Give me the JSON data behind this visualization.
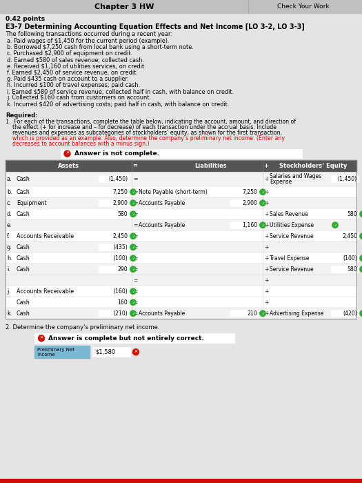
{
  "title": "Chapter 3 HW",
  "check_your_work": "Check Your Work",
  "points": "0.42 points",
  "problem_title": "E3-7 Determining Accounting Equation Effects and Net Income [LO 3-2, LO 3-3]",
  "intro": "The following transactions occurred during a recent year:",
  "transactions": [
    "a. Paid wages of $1,450 for the current period (example).",
    "b. Borrowed $7,250 cash from local bank using a short-term note.",
    "c. Purchased $2,900 of equipment on credit.",
    "d. Earned $580 of sales revenue; collected cash.",
    "e. Received $1,160 of utilities services, on credit.",
    "f. Earned $2,450 of service revenue, on credit.",
    "g. Paid $435 cash on account to a supplier.",
    "h. Incurred $100 of travel expenses; paid cash.",
    "i. Earned $580 of service revenue; collected half in cash, with balance on credit.",
    "j. Collected $160 cash from customers on account.",
    "k. Incurred $420 of advertising costs; paid half in cash, with balance on credit."
  ],
  "answer_incomplete_label": "Answer is not complete.",
  "answer_complete_label": "Answer is complete but not entirely correct.",
  "table_header_assets": "Assets",
  "table_header_eq": "=",
  "table_header_liab": "Liabilities",
  "table_header_plus": "+",
  "table_header_equity": "Stockholders’ Equity",
  "render_rows": [
    [
      "a",
      "Cash",
      "(1,450)",
      false,
      "",
      "",
      false,
      "Salaries and Wages\nExpense",
      "(1,450)",
      false,
      "#f2f2f2"
    ],
    [
      "b",
      "Cash",
      "7,250",
      true,
      "Note Payable (short-term)",
      "7,250",
      true,
      "",
      "",
      false,
      "#ffffff"
    ],
    [
      "c",
      "Equipment",
      "2,900",
      true,
      "Accounts Payable",
      "2,900",
      true,
      "",
      "",
      false,
      "#f2f2f2"
    ],
    [
      "d",
      "Cash",
      "580",
      true,
      "",
      "",
      false,
      "Sales Revenue",
      "580",
      true,
      "#ffffff"
    ],
    [
      "e",
      "",
      "",
      false,
      "Accounts Payable",
      "1,160",
      true,
      "Utilities Expense",
      "",
      true,
      "#f2f2f2"
    ],
    [
      "f",
      "Accounts Receivable",
      "2,450",
      true,
      "",
      "",
      false,
      "Service Revenue",
      "2,450",
      true,
      "#ffffff"
    ],
    [
      "g",
      "Cash",
      "(435)",
      true,
      "",
      "",
      false,
      "",
      "",
      false,
      "#f2f2f2"
    ],
    [
      "h",
      "Cash",
      "(100)",
      true,
      "",
      "",
      false,
      "Travel Expense",
      "(100)",
      true,
      "#ffffff"
    ],
    [
      "i",
      "Cash",
      "290",
      true,
      "",
      "",
      false,
      "Service Revenue",
      "580",
      true,
      "#f2f2f2"
    ],
    [
      "",
      "",
      "",
      false,
      "",
      "",
      false,
      "",
      "",
      false,
      "#f2f2f2"
    ],
    [
      "j",
      "Accounts Receivable",
      "(160)",
      true,
      "",
      "",
      false,
      "",
      "",
      false,
      "#ffffff"
    ],
    [
      "",
      "Cash",
      "160",
      true,
      "",
      "",
      false,
      "",
      "",
      false,
      "#ffffff"
    ],
    [
      "k",
      "Cash",
      "(210)",
      true,
      "Accounts Payable",
      "210",
      true,
      "Advertising Expense",
      "(420)",
      true,
      "#f2f2f2"
    ]
  ],
  "section2_label": "2. Determine the company’s preliminary net income.",
  "prelim_net_income_label": "Preliminary Net\nIncome",
  "prelim_net_income_val": "$1,580",
  "bg_color": "#c8c8c8",
  "content_bg": "#e8e8e8",
  "header_bg": "#555555",
  "row_light": "#f2f2f2",
  "row_white": "#ffffff",
  "green_color": "#33aa33",
  "red_color": "#cc1100",
  "input_blue": "#7ab8d4",
  "title_bar_bg": "#c0c0c0",
  "white": "#ffffff"
}
